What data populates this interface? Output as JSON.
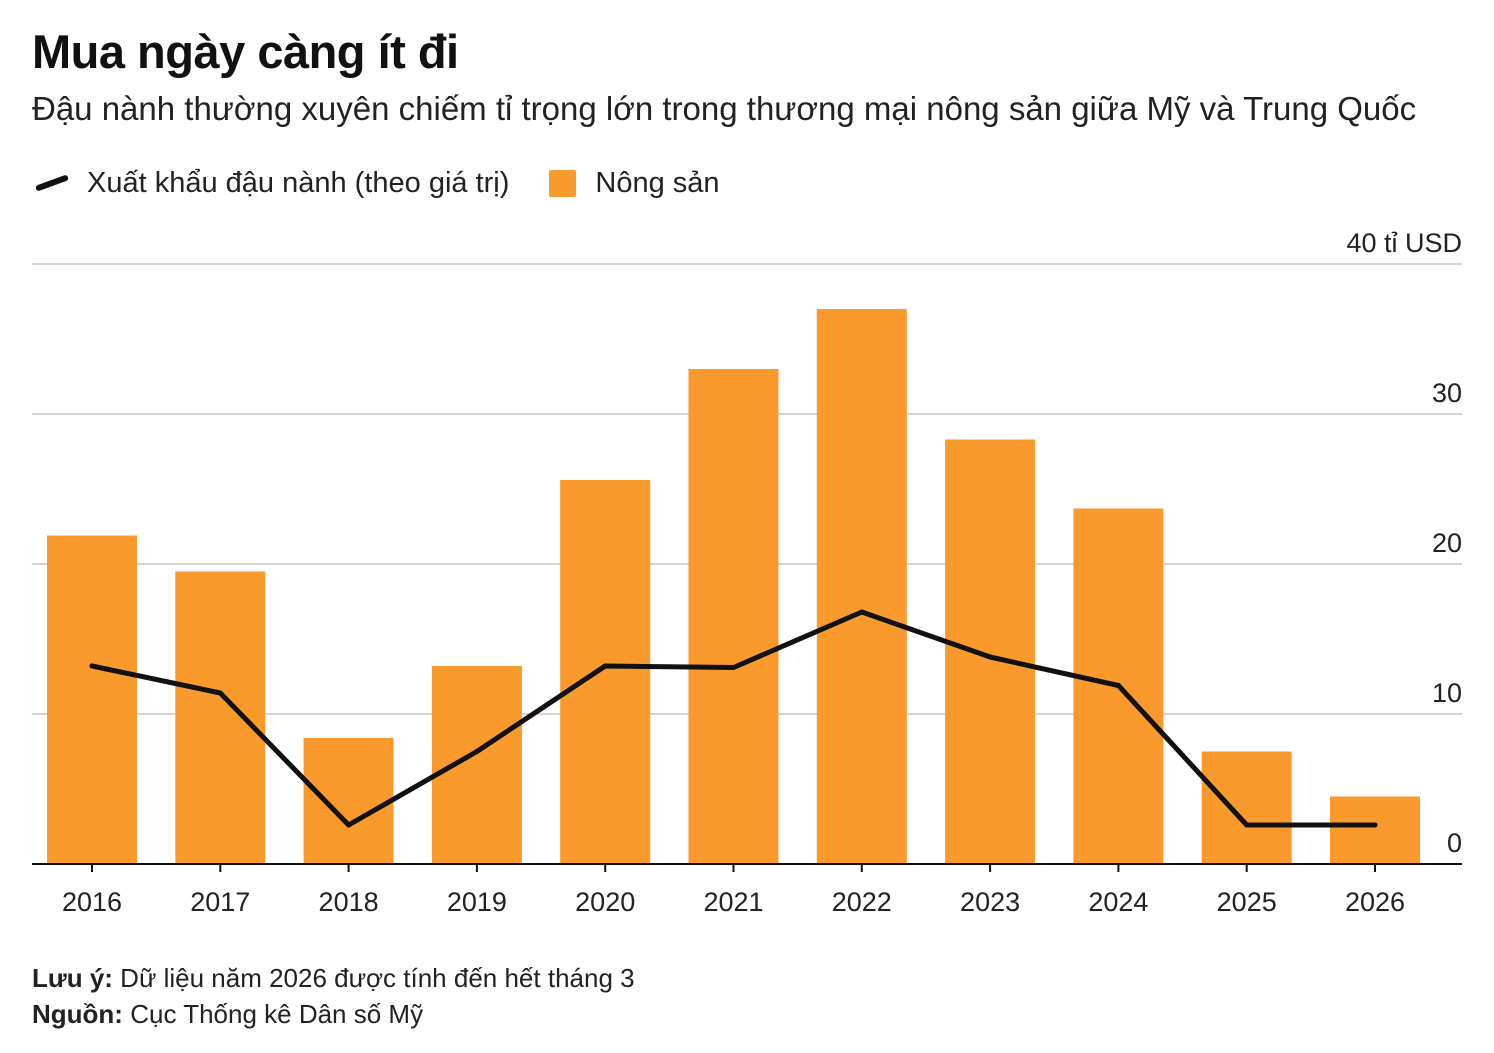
{
  "header": {
    "title": "Mua ngày càng ít đi",
    "subtitle": "Đậu nành thường xuyên chiếm tỉ trọng lớn trong thương mại nông sản giữa Mỹ và Trung Quốc"
  },
  "legend": {
    "line_label": "Xuất khẩu đậu nành (theo giá trị)",
    "bar_label": "Nông sản"
  },
  "footer": {
    "note_label": "Lưu ý:",
    "note_text": "Dữ liệu năm 2026 được tính đến hết tháng 3",
    "source_label": "Nguồn:",
    "source_text": "Cục Thống kê Dân số Mỹ"
  },
  "chart_data": {
    "type": "bar",
    "categories": [
      "2016",
      "2017",
      "2018",
      "2019",
      "2020",
      "2021",
      "2022",
      "2023",
      "2024",
      "2025",
      "2026"
    ],
    "series": [
      {
        "name": "Nông sản",
        "type": "bar",
        "color": "#fb9a2c",
        "values": [
          21.9,
          19.5,
          8.4,
          13.2,
          25.6,
          33.0,
          37.0,
          28.3,
          23.7,
          7.5,
          4.5
        ]
      },
      {
        "name": "Xuất khẩu đậu nành (theo giá trị)",
        "type": "line",
        "color": "#111111",
        "values": [
          13.2,
          11.4,
          2.6,
          7.5,
          13.2,
          13.1,
          16.8,
          13.8,
          11.9,
          2.6,
          2.6
        ]
      }
    ],
    "y_unit_label": "40 tỉ USD",
    "y_ticks": [
      "0",
      "10",
      "20",
      "30"
    ],
    "ylim": [
      0,
      40
    ],
    "y_axis_side": "right",
    "grid": true
  }
}
